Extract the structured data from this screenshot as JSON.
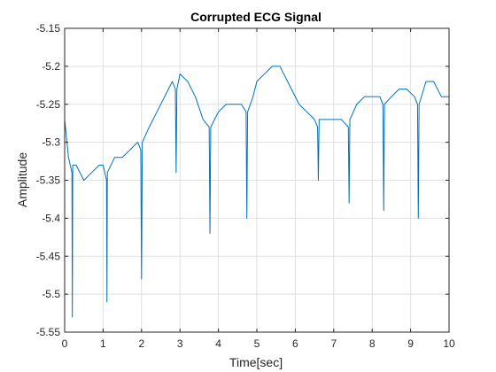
{
  "chart_data": {
    "type": "line",
    "title": "Corrupted ECG Signal",
    "xlabel": "Time[sec]",
    "ylabel": "Amplitude",
    "xlim": [
      0,
      10
    ],
    "ylim": [
      -5.55,
      -5.15
    ],
    "grid": true,
    "xticks": [
      0,
      1,
      2,
      3,
      4,
      5,
      6,
      7,
      8,
      9,
      10
    ],
    "xtick_labels": [
      "0",
      "1",
      "2",
      "3",
      "4",
      "5",
      "6",
      "7",
      "8",
      "9",
      "10"
    ],
    "yticks": [
      -5.55,
      -5.5,
      -5.45,
      -5.4,
      -5.35,
      -5.3,
      -5.25,
      -5.2,
      -5.15
    ],
    "ytick_labels": [
      "-5.55",
      "-5.5",
      "-5.45",
      "-5.4",
      "-5.35",
      "-5.3",
      "-5.25",
      "-5.2",
      "-5.15"
    ],
    "line_color": "#0072BD",
    "series": [
      {
        "x": [
          0,
          0.1,
          0.19,
          0.2,
          0.21,
          0.3,
          0.5,
          0.7,
          0.9,
          1.0,
          1.09,
          1.1,
          1.11,
          1.3,
          1.5,
          1.7,
          1.9,
          1.98,
          2.0,
          2.02,
          2.2,
          2.4,
          2.6,
          2.8,
          2.88,
          2.9,
          2.92,
          3.0,
          3.2,
          3.4,
          3.6,
          3.76,
          3.78,
          3.8,
          3.9,
          4.0,
          4.2,
          4.4,
          4.6,
          4.72,
          4.74,
          4.76,
          4.9,
          5.0,
          5.2,
          5.4,
          5.6,
          5.7,
          5.8,
          5.9,
          6.1,
          6.3,
          6.5,
          6.58,
          6.6,
          6.62,
          6.8,
          7.0,
          7.2,
          7.38,
          7.4,
          7.42,
          7.6,
          7.8,
          8.0,
          8.2,
          8.28,
          8.3,
          8.32,
          8.5,
          8.7,
          8.9,
          9.1,
          9.18,
          9.2,
          9.22,
          9.4,
          9.6,
          9.8,
          10.0
        ],
        "y": [
          -5.27,
          -5.32,
          -5.34,
          -5.53,
          -5.33,
          -5.33,
          -5.35,
          -5.34,
          -5.33,
          -5.33,
          -5.35,
          -5.51,
          -5.34,
          -5.32,
          -5.32,
          -5.31,
          -5.3,
          -5.31,
          -5.48,
          -5.3,
          -5.28,
          -5.26,
          -5.24,
          -5.22,
          -5.23,
          -5.34,
          -5.23,
          -5.21,
          -5.22,
          -5.24,
          -5.27,
          -5.28,
          -5.42,
          -5.28,
          -5.27,
          -5.26,
          -5.25,
          -5.25,
          -5.25,
          -5.26,
          -5.4,
          -5.26,
          -5.24,
          -5.22,
          -5.21,
          -5.2,
          -5.2,
          -5.21,
          -5.22,
          -5.23,
          -5.25,
          -5.26,
          -5.27,
          -5.28,
          -5.35,
          -5.27,
          -5.27,
          -5.27,
          -5.27,
          -5.28,
          -5.38,
          -5.27,
          -5.25,
          -5.24,
          -5.24,
          -5.24,
          -5.25,
          -5.39,
          -5.25,
          -5.24,
          -5.23,
          -5.23,
          -5.24,
          -5.25,
          -5.4,
          -5.25,
          -5.22,
          -5.22,
          -5.24,
          -5.24
        ]
      }
    ]
  }
}
